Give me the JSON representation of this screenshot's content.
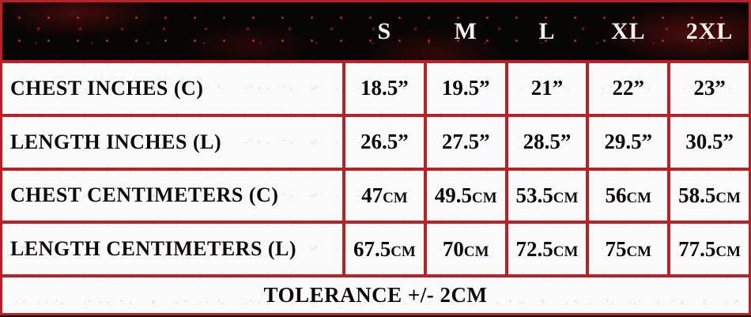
{
  "chart_data": {
    "type": "table",
    "column_headers": [
      "S",
      "M",
      "L",
      "XL",
      "2XL"
    ],
    "rows": [
      {
        "label": "CHEST INCHES (C)",
        "values": [
          "18.5”",
          "19.5”",
          "21”",
          "22”",
          "23”"
        ]
      },
      {
        "label": "LENGTH INCHES (L)",
        "values": [
          "26.5”",
          "27.5”",
          "28.5”",
          "29.5”",
          "30.5”"
        ]
      },
      {
        "label": "CHEST CENTIMETERS (C)",
        "values": [
          "47cm",
          "49.5cm",
          "53.5cm",
          "56cm",
          "58.5cm"
        ]
      },
      {
        "label": "LENGTH CENTIMETERS (L)",
        "values": [
          "67.5cm",
          "70cm",
          "72.5cm",
          "75cm",
          "77.5cm"
        ]
      }
    ],
    "footer_note": "TOLERANCE +/- 2CM",
    "layout_hints": {
      "header_background": "splattered-black",
      "grid_lines": "red",
      "footer_spans_all_columns": true
    }
  },
  "colors": {
    "border_red": "#ba2127",
    "header_black": "#080505",
    "cell_white": "#fbfafa",
    "text_black": "#0d0b0b",
    "header_text_white": "#f3f0ea"
  }
}
